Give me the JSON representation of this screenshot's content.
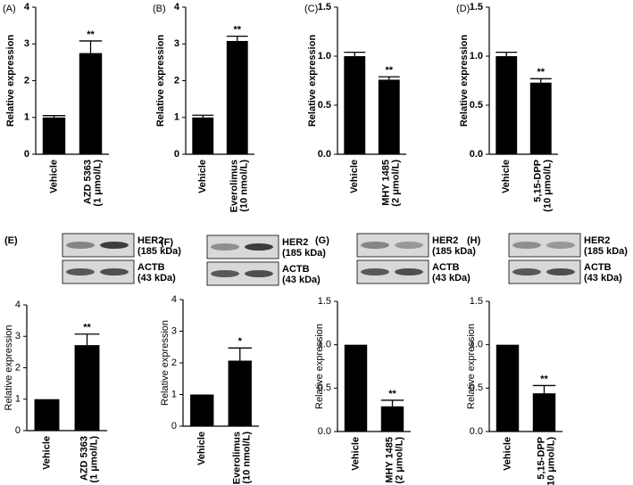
{
  "chart_data": [
    {
      "type": "bar",
      "panel": "(A)",
      "ylabel": "Relative expression",
      "categories": [
        "Vehicle",
        "AZD 5363"
      ],
      "category_notes": [
        null,
        "(1 μmol/L)"
      ],
      "values": [
        1.0,
        2.75
      ],
      "errors": [
        0.05,
        0.33
      ],
      "annotations": [
        null,
        "**"
      ],
      "color": "#000000",
      "ylim": [
        0,
        4
      ],
      "yticks": [
        0,
        1,
        2,
        3,
        4
      ]
    },
    {
      "type": "bar",
      "panel": "(B)",
      "ylabel": "Relative expression",
      "categories": [
        "Vehicle",
        "Everolimus"
      ],
      "category_notes": [
        null,
        "(10 nmol/L)"
      ],
      "values": [
        1.0,
        3.08
      ],
      "errors": [
        0.06,
        0.13
      ],
      "annotations": [
        null,
        "**"
      ],
      "color": "#000000",
      "ylim": [
        0,
        4
      ],
      "yticks": [
        0,
        1,
        2,
        3,
        4
      ]
    },
    {
      "type": "bar",
      "panel": "(C)",
      "ylabel": "Relative expression",
      "categories": [
        "Vehicle",
        "MHY 1485"
      ],
      "category_notes": [
        null,
        "(2 μmol/L)"
      ],
      "values": [
        1.0,
        0.76
      ],
      "errors": [
        0.04,
        0.03
      ],
      "annotations": [
        null,
        "**"
      ],
      "color": "#000000",
      "ylim": [
        0,
        1.5
      ],
      "yticks": [
        {
          "value": 0,
          "label": "0.0"
        },
        {
          "value": 0.5,
          "label": "0.5"
        },
        {
          "value": 1,
          "label": "1.0"
        },
        {
          "value": 1.5,
          "label": "1.5"
        }
      ]
    },
    {
      "type": "bar",
      "panel": "(D)",
      "ylabel": "Relative expression",
      "categories": [
        "Vehicle",
        "5,15-DPP"
      ],
      "category_notes": [
        null,
        "(10 μmol/L)"
      ],
      "values": [
        1.0,
        0.73
      ],
      "errors": [
        0.04,
        0.04
      ],
      "annotations": [
        null,
        "**"
      ],
      "color": "#000000",
      "ylim": [
        0,
        1.5
      ],
      "yticks": [
        {
          "value": 0,
          "label": "0.0"
        },
        {
          "value": 0.5,
          "label": "0.5"
        },
        {
          "value": 1,
          "label": "1.0"
        },
        {
          "value": 1.5,
          "label": "1.5"
        }
      ]
    },
    {
      "type": "bar",
      "panel": "(E)",
      "ylabel": "Relative expression",
      "categories": [
        "Vehicle",
        "AZD 5363"
      ],
      "category_notes": [
        null,
        "(1 μmol/L)"
      ],
      "values": [
        1.0,
        2.72
      ],
      "errors": [
        null,
        0.35
      ],
      "annotations": [
        null,
        "**"
      ],
      "color": "#000000",
      "ylim": [
        0,
        4
      ],
      "yticks": [
        0,
        1,
        2,
        3,
        4
      ],
      "blot": [
        {
          "name": "HER2",
          "size": "(185 kDa)"
        },
        {
          "name": "ACTB",
          "size": "(43 kDa)"
        }
      ]
    },
    {
      "type": "bar",
      "panel": "(F)",
      "ylabel": "Relative expression",
      "categories": [
        "Vehicle",
        "Everolimus"
      ],
      "category_notes": [
        null,
        "(10 nmol/L)"
      ],
      "values": [
        1.0,
        2.07
      ],
      "errors": [
        null,
        0.4
      ],
      "annotations": [
        null,
        "*"
      ],
      "color": "#000000",
      "ylim": [
        0,
        4
      ],
      "yticks": [
        0,
        1,
        2,
        3,
        4
      ],
      "blot": [
        {
          "name": "HER2",
          "size": "(185 kDa)"
        },
        {
          "name": "ACTB",
          "size": "(43 kDa)"
        }
      ]
    },
    {
      "type": "bar",
      "panel": "(G)",
      "ylabel": "Relative expression",
      "categories": [
        "Vehicle",
        "MHY 1485"
      ],
      "category_notes": [
        null,
        "(2 μmol/L)"
      ],
      "values": [
        1.0,
        0.29
      ],
      "errors": [
        null,
        0.07
      ],
      "annotations": [
        null,
        "**"
      ],
      "color": "#000000",
      "ylim": [
        0,
        1.5
      ],
      "yticks": [
        {
          "value": 0,
          "label": "0.0"
        },
        {
          "value": 0.5,
          "label": "0.5"
        },
        {
          "value": 1,
          "label": "1.0"
        },
        {
          "value": 1.5,
          "label": "1.5"
        }
      ],
      "blot": [
        {
          "name": "HER2",
          "size": "(185 kDa)"
        },
        {
          "name": "ACTB",
          "size": "(43 kDa)"
        }
      ]
    },
    {
      "type": "bar",
      "panel": "(H)",
      "ylabel": "Relative expression",
      "categories": [
        "Vehicle",
        "5,15-DPP"
      ],
      "category_notes": [
        null,
        "(10 μmol/L)"
      ],
      "values": [
        1.0,
        0.44
      ],
      "errors": [
        null,
        0.09
      ],
      "annotations": [
        null,
        "**"
      ],
      "color": "#000000",
      "ylim": [
        0,
        1.5
      ],
      "yticks": [
        {
          "value": 0,
          "label": "0.0"
        },
        {
          "value": 0.5,
          "label": "0.5"
        },
        {
          "value": 1,
          "label": "1.0"
        },
        {
          "value": 1.5,
          "label": "1.5"
        }
      ],
      "blot": [
        {
          "name": "HER2",
          "size": "(185 kDa)"
        },
        {
          "name": "ACTB",
          "size": "(43 kDa)"
        }
      ]
    }
  ]
}
